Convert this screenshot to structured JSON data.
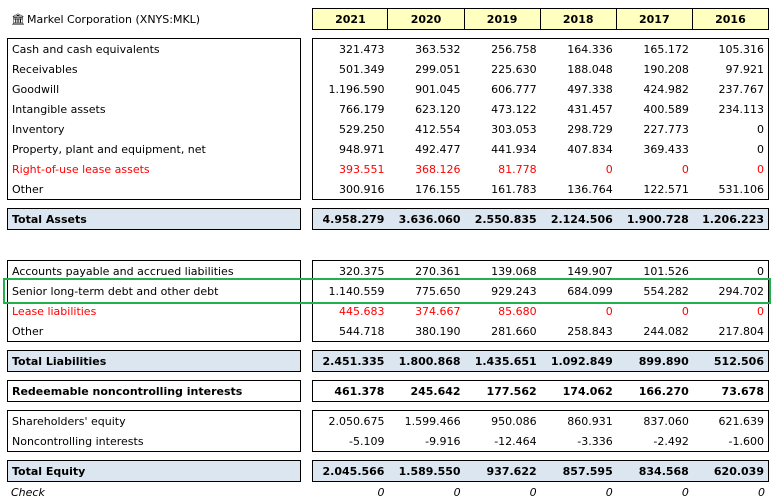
{
  "company": {
    "icon": "bank-icon",
    "title": "Markel Corporation (XNYS:MKL)"
  },
  "years": [
    "2021",
    "2020",
    "2019",
    "2018",
    "2017",
    "2016"
  ],
  "assets": [
    {
      "label": "Cash and cash equivalents",
      "values": [
        "321.473",
        "363.532",
        "256.758",
        "164.336",
        "165.172",
        "105.316"
      ],
      "red": false
    },
    {
      "label": "Receivables",
      "values": [
        "501.349",
        "299.051",
        "225.630",
        "188.048",
        "190.208",
        "97.921"
      ],
      "red": false
    },
    {
      "label": "Goodwill",
      "values": [
        "1.196.590",
        "901.045",
        "606.777",
        "497.338",
        "424.982",
        "237.767"
      ],
      "red": false
    },
    {
      "label": "Intangible assets",
      "values": [
        "766.179",
        "623.120",
        "473.122",
        "431.457",
        "400.589",
        "234.113"
      ],
      "red": false
    },
    {
      "label": "Inventory",
      "values": [
        "529.250",
        "412.554",
        "303.053",
        "298.729",
        "227.773",
        "0"
      ],
      "red": false
    },
    {
      "label": "Property, plant and equipment, net",
      "values": [
        "948.971",
        "492.477",
        "441.934",
        "407.834",
        "369.433",
        "0"
      ],
      "red": false
    },
    {
      "label": "Right-of-use lease assets",
      "values": [
        "393.551",
        "368.126",
        "81.778",
        "0",
        "0",
        "0"
      ],
      "red": true
    },
    {
      "label": "Other",
      "values": [
        "300.916",
        "176.155",
        "161.783",
        "136.764",
        "122.571",
        "531.106"
      ],
      "red": false
    }
  ],
  "total_assets": {
    "label": "Total Assets",
    "values": [
      "4.958.279",
      "3.636.060",
      "2.550.835",
      "2.124.506",
      "1.900.728",
      "1.206.223"
    ]
  },
  "liabilities": [
    {
      "label": "Accounts payable and accrued liabilities",
      "values": [
        "320.375",
        "270.361",
        "139.068",
        "149.907",
        "101.526",
        "0"
      ],
      "red": false
    },
    {
      "label": "Senior long-term debt and other debt",
      "values": [
        "1.140.559",
        "775.650",
        "929.243",
        "684.099",
        "554.282",
        "294.702"
      ],
      "red": false
    },
    {
      "label": "Lease liabilities",
      "values": [
        "445.683",
        "374.667",
        "85.680",
        "0",
        "0",
        "0"
      ],
      "red": true
    },
    {
      "label": "Other",
      "values": [
        "544.718",
        "380.190",
        "281.660",
        "258.843",
        "244.082",
        "217.804"
      ],
      "red": false
    }
  ],
  "total_liabilities": {
    "label": "Total Liabilities",
    "values": [
      "2.451.335",
      "1.800.868",
      "1.435.651",
      "1.092.849",
      "899.890",
      "512.506"
    ]
  },
  "redeemable": {
    "label": "Redeemable noncontrolling interests",
    "values": [
      "461.378",
      "245.642",
      "177.562",
      "174.062",
      "166.270",
      "73.678"
    ]
  },
  "equity": [
    {
      "label": "Shareholders' equity",
      "values": [
        "2.050.675",
        "1.599.466",
        "950.086",
        "860.931",
        "837.060",
        "621.639"
      ]
    },
    {
      "label": "Noncontrolling interests",
      "values": [
        "-5.109",
        "-9.916",
        "-12.464",
        "-3.336",
        "-2.492",
        "-1.600"
      ]
    }
  ],
  "total_equity": {
    "label": "Total Equity",
    "values": [
      "2.045.566",
      "1.589.550",
      "937.622",
      "857.595",
      "834.568",
      "620.039"
    ]
  },
  "check": {
    "label": "Check",
    "values": [
      "0",
      "0",
      "0",
      "0",
      "0",
      "0"
    ]
  },
  "colors": {
    "header_fill": "#ffffc0",
    "total_fill": "#dce6f1",
    "negative_red": "#ff0000",
    "highlight_green": "#22b14c"
  }
}
